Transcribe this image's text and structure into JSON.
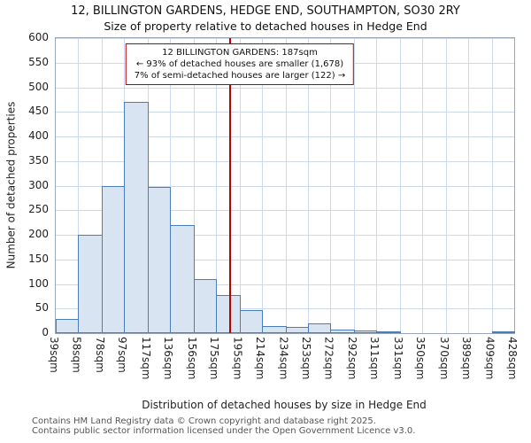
{
  "chart_data": {
    "type": "bar",
    "title": "12, BILLINGTON GARDENS, HEDGE END, SOUTHAMPTON, SO30 2RY",
    "subtitle": "Size of property relative to detached houses in Hedge End",
    "xlabel": "Distribution of detached houses by size in Hedge End",
    "ylabel": "Number of detached properties",
    "ylim": [
      0,
      600
    ],
    "ytick_step": 50,
    "grid": true,
    "legend": false,
    "bin_edges_sqm": [
      39,
      58,
      78,
      97,
      117,
      136,
      156,
      175,
      195,
      214,
      234,
      253,
      272,
      292,
      311,
      331,
      350,
      370,
      389,
      409,
      428
    ],
    "bin_labels": [
      "39sqm",
      "58sqm",
      "78sqm",
      "97sqm",
      "117sqm",
      "136sqm",
      "156sqm",
      "175sqm",
      "195sqm",
      "214sqm",
      "234sqm",
      "253sqm",
      "272sqm",
      "292sqm",
      "311sqm",
      "331sqm",
      "350sqm",
      "370sqm",
      "389sqm",
      "409sqm",
      "428sqm"
    ],
    "values": [
      28,
      200,
      300,
      470,
      297,
      220,
      110,
      78,
      47,
      14,
      12,
      20,
      7,
      5,
      4,
      0,
      0,
      0,
      0,
      3
    ],
    "marker_value_sqm": 187,
    "marker_color": "#bb0000",
    "bar_fill": "#d8e4f2",
    "bar_border": "#4a7ebb",
    "grid_color": "#ccd9ec"
  },
  "annotation": {
    "line1": "12 BILLINGTON GARDENS: 187sqm",
    "line2": "← 93% of detached houses are smaller (1,678)",
    "line3": "7% of semi-detached houses are larger (122) →"
  },
  "footer": {
    "line1": "Contains HM Land Registry data © Crown copyright and database right 2025.",
    "line2": "Contains public sector information licensed under the Open Government Licence v3.0."
  }
}
